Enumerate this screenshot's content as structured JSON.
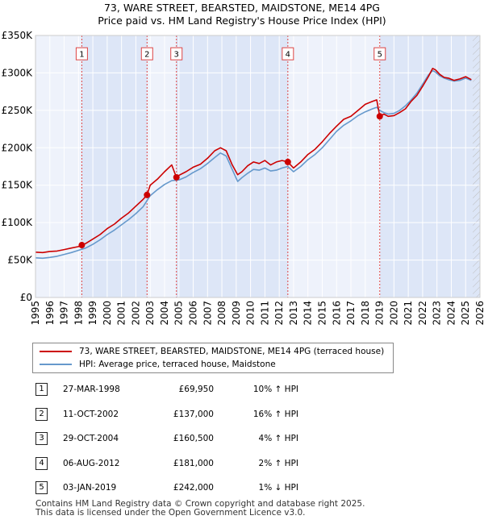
{
  "chart_data": {
    "type": "line",
    "title": "73, WARE STREET, BEARSTED, MAIDSTONE, ME14 4PG",
    "subtitle": "Price paid vs. HM Land Registry's House Price Index (HPI)",
    "xlim": [
      1995,
      2026
    ],
    "ylim": [
      0,
      350000
    ],
    "x_ticks": [
      "1995",
      "1996",
      "1997",
      "1998",
      "1999",
      "2000",
      "2001",
      "2002",
      "2003",
      "2004",
      "2005",
      "2006",
      "2007",
      "2008",
      "2009",
      "2010",
      "2011",
      "2012",
      "2013",
      "2014",
      "2015",
      "2016",
      "2017",
      "2018",
      "2019",
      "2020",
      "2021",
      "2022",
      "2023",
      "2024",
      "2025",
      "2026"
    ],
    "y_ticks": [
      {
        "value": 0,
        "label": "£0"
      },
      {
        "value": 50000,
        "label": "£50K"
      },
      {
        "value": 100000,
        "label": "£100K"
      },
      {
        "value": 150000,
        "label": "£150K"
      },
      {
        "value": 200000,
        "label": "£200K"
      },
      {
        "value": 250000,
        "label": "£250K"
      },
      {
        "value": 300000,
        "label": "£300K"
      },
      {
        "value": 350000,
        "label": "£350K"
      }
    ],
    "series": [
      {
        "name": "73, WARE STREET, BEARSTED, MAIDSTONE, ME14 4PG (terraced house)",
        "color": "#cc0000",
        "x": [
          1995.0,
          1995.5,
          1996.0,
          1996.5,
          1997.0,
          1997.5,
          1998.0,
          1998.23,
          1998.5,
          1999.0,
          1999.5,
          2000.0,
          2000.5,
          2001.0,
          2001.5,
          2002.0,
          2002.5,
          2002.78,
          2003.0,
          2003.5,
          2004.0,
          2004.5,
          2004.83,
          2005.0,
          2005.5,
          2006.0,
          2006.5,
          2007.0,
          2007.5,
          2007.9,
          2008.3,
          2008.7,
          2009.1,
          2009.4,
          2009.8,
          2010.2,
          2010.6,
          2011.0,
          2011.4,
          2011.8,
          2012.2,
          2012.6,
          2013.0,
          2013.5,
          2014.0,
          2014.5,
          2015.0,
          2015.5,
          2016.0,
          2016.5,
          2017.0,
          2017.5,
          2018.0,
          2018.5,
          2018.8,
          2019.01,
          2019.3,
          2019.6,
          2020.0,
          2020.4,
          2020.8,
          2021.2,
          2021.6,
          2022.0,
          2022.4,
          2022.7,
          2022.9,
          2023.2,
          2023.5,
          2023.8,
          2024.2,
          2024.6,
          2025.0,
          2025.4
        ],
        "values": [
          60500,
          60000,
          61500,
          62000,
          64000,
          66000,
          68000,
          69950,
          72000,
          78000,
          84000,
          92000,
          98000,
          106000,
          113000,
          122000,
          131000,
          137000,
          150000,
          158000,
          168000,
          177000,
          160500,
          163000,
          168000,
          174000,
          178000,
          186000,
          196000,
          200000,
          196000,
          178000,
          164000,
          168000,
          176000,
          181000,
          179000,
          183000,
          177000,
          181000,
          183000,
          181000,
          173000,
          181000,
          191000,
          198000,
          208000,
          219000,
          229000,
          238000,
          242000,
          250000,
          258000,
          262000,
          264000,
          242000,
          245000,
          242000,
          243000,
          247000,
          252000,
          262000,
          270000,
          282000,
          295000,
          306000,
          304000,
          298000,
          294000,
          293000,
          290000,
          292000,
          295000,
          291000
        ]
      },
      {
        "name": "HPI: Average price, terraced house, Maidstone",
        "color": "#6699cc",
        "x": [
          1995.0,
          1995.5,
          1996.0,
          1996.5,
          1997.0,
          1997.5,
          1998.0,
          1998.5,
          1999.0,
          1999.5,
          2000.0,
          2000.5,
          2001.0,
          2001.5,
          2002.0,
          2002.5,
          2003.0,
          2003.5,
          2004.0,
          2004.5,
          2005.0,
          2005.5,
          2006.0,
          2006.5,
          2007.0,
          2007.5,
          2007.9,
          2008.3,
          2008.7,
          2009.1,
          2009.4,
          2009.8,
          2010.2,
          2010.6,
          2011.0,
          2011.4,
          2011.8,
          2012.2,
          2012.6,
          2013.0,
          2013.5,
          2014.0,
          2014.5,
          2015.0,
          2015.5,
          2016.0,
          2016.5,
          2017.0,
          2017.5,
          2018.0,
          2018.5,
          2018.8,
          2019.0,
          2019.3,
          2019.6,
          2020.0,
          2020.4,
          2020.8,
          2021.2,
          2021.6,
          2022.0,
          2022.4,
          2022.7,
          2022.9,
          2023.2,
          2023.5,
          2023.8,
          2024.2,
          2024.6,
          2025.0,
          2025.4
        ],
        "values": [
          53000,
          52500,
          53500,
          55000,
          57500,
          60000,
          63000,
          66000,
          71000,
          77000,
          84000,
          90000,
          97000,
          104000,
          112000,
          121000,
          136000,
          144000,
          151000,
          156000,
          157000,
          161000,
          167000,
          172000,
          179000,
          187000,
          193000,
          189000,
          172000,
          155000,
          160000,
          166000,
          171000,
          170000,
          173000,
          169000,
          170000,
          173000,
          175000,
          168000,
          175000,
          184000,
          191000,
          200000,
          211000,
          222000,
          230000,
          236000,
          243000,
          248000,
          252000,
          254000,
          250000,
          247000,
          245000,
          246000,
          250000,
          256000,
          264000,
          273000,
          285000,
          297000,
          303000,
          301000,
          296000,
          293000,
          291000,
          289000,
          290000,
          293000,
          290000
        ]
      }
    ],
    "markers": [
      {
        "label": "1",
        "x": 1998.23,
        "y": 69950,
        "box_y": 325000
      },
      {
        "label": "2",
        "x": 2002.78,
        "y": 137000,
        "box_y": 325000
      },
      {
        "label": "3",
        "x": 2004.83,
        "y": 160500,
        "box_y": 325000
      },
      {
        "label": "4",
        "x": 2012.6,
        "y": 181000,
        "box_y": 325000
      },
      {
        "label": "5",
        "x": 2019.01,
        "y": 242000,
        "box_y": 325000
      }
    ],
    "future_from": 2025.5
  },
  "legend": {
    "items": [
      {
        "label": "73, WARE STREET, BEARSTED, MAIDSTONE, ME14 4PG (terraced house)",
        "color": "#cc0000"
      },
      {
        "label": "HPI: Average price, terraced house, Maidstone",
        "color": "#6699cc"
      }
    ]
  },
  "sales": [
    {
      "num": "1",
      "date": "27-MAR-1998",
      "price": "£69,950",
      "hpi": "10% ↑ HPI"
    },
    {
      "num": "2",
      "date": "11-OCT-2002",
      "price": "£137,000",
      "hpi": "16% ↑ HPI"
    },
    {
      "num": "3",
      "date": "29-OCT-2004",
      "price": "£160,500",
      "hpi": "4% ↑ HPI"
    },
    {
      "num": "4",
      "date": "06-AUG-2012",
      "price": "£181,000",
      "hpi": "2% ↑ HPI"
    },
    {
      "num": "5",
      "date": "03-JAN-2019",
      "price": "£242,000",
      "hpi": "1% ↓ HPI"
    }
  ],
  "footer": {
    "line1": "Contains HM Land Registry data © Crown copyright and database right 2025.",
    "line2": "This data is licensed under the Open Government Licence v3.0."
  },
  "colors": {
    "band": "#dde6f7",
    "marker_line": "#dd4444",
    "grid": "#ffffff",
    "plot_bg": "#eef2fb"
  }
}
